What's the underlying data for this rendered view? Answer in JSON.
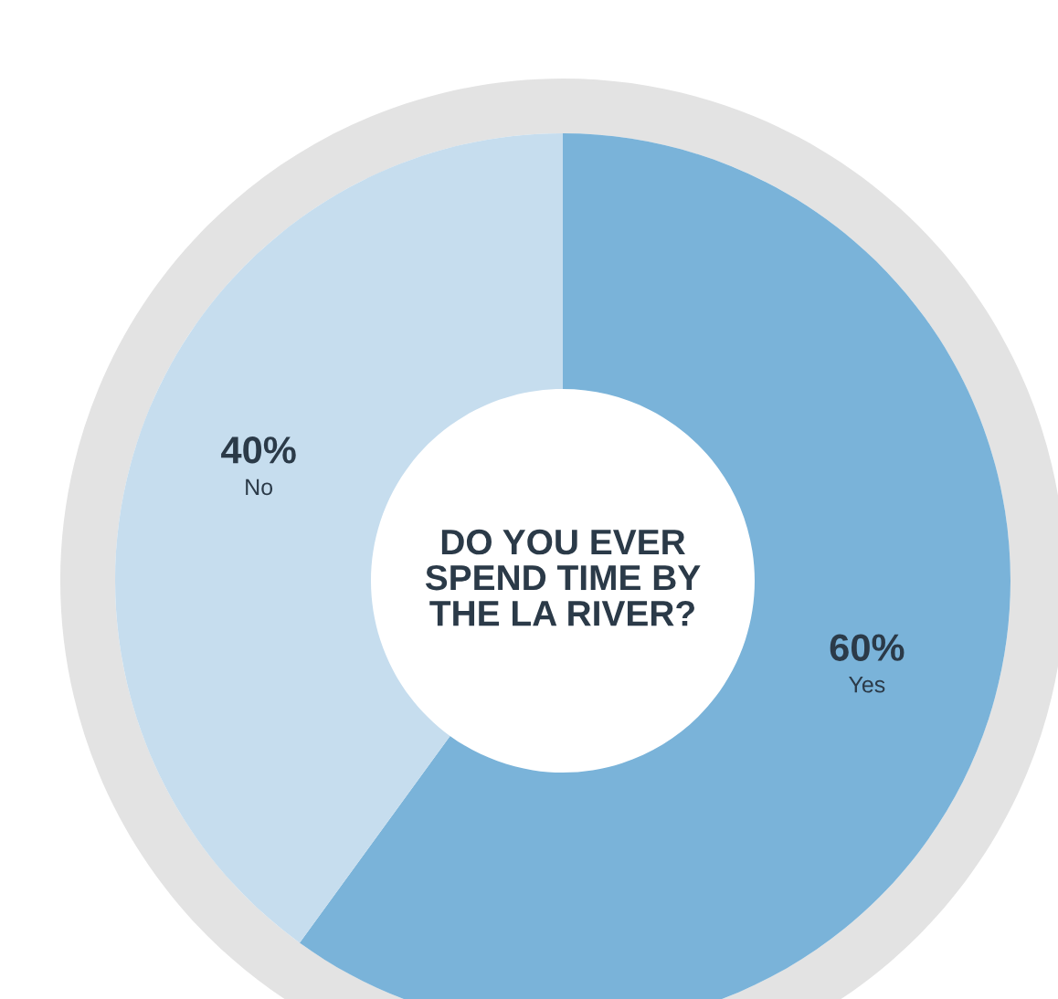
{
  "chart_data": {
    "type": "donut",
    "title": "DO YOU EVER\nSPEND TIME BY\nTHE LA RIVER?",
    "categories": [
      "Yes",
      "No"
    ],
    "values": [
      60,
      40
    ],
    "colors": [
      "#7ab3d9",
      "#c6ddee"
    ],
    "value_labels": [
      "60%",
      "40%"
    ],
    "legend": false
  }
}
